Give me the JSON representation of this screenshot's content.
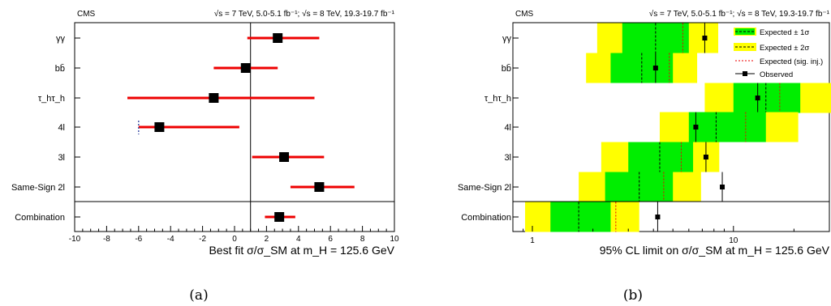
{
  "captions": {
    "a": "(a)",
    "b": "(b)"
  },
  "chart_data": [
    {
      "type": "scatter",
      "panel": "a",
      "experiment": "CMS",
      "energy_text": "√s = 7 TeV, 5.0-5.1 fb⁻¹; √s = 8 TeV, 19.3-19.7 fb⁻¹",
      "xlabel": "Best fit σ/σ_SM at m_H = 125.6 GeV",
      "xlim": [
        -10,
        10
      ],
      "xticks": [
        "-10",
        "-8",
        "-6",
        "-4",
        "-2",
        "0",
        "2",
        "4",
        "6",
        "8",
        "10"
      ],
      "categories": [
        "γγ",
        "bb̄",
        "τ_hτ_h",
        "4l",
        "3l",
        "Same-Sign 2l",
        "Combination"
      ],
      "values": [
        2.7,
        0.7,
        -1.3,
        -4.7,
        3.1,
        5.3,
        2.8
      ],
      "err_low": [
        1.9,
        2.0,
        5.4,
        1.3,
        2.0,
        1.8,
        0.9
      ],
      "err_high": [
        2.6,
        2.0,
        6.3,
        5.0,
        2.5,
        2.2,
        1.0
      ],
      "boundary_value": -6,
      "sm_reference": 1,
      "colors": {
        "marker": "#000000",
        "error_bar": "#ee0000"
      }
    },
    {
      "type": "scatter",
      "panel": "b",
      "experiment": "CMS",
      "energy_text": "√s = 7 TeV, 5.0-5.1 fb⁻¹; √s = 8 TeV, 19.3-19.7 fb⁻¹",
      "xlabel": "95% CL limit on σ/σ_SM at m_H = 125.6 GeV",
      "xscale": "log",
      "xlim": [
        0.8,
        30
      ],
      "xticks": [
        "1",
        "10"
      ],
      "categories": [
        "γγ",
        "bb̄",
        "τ_hτ_h",
        "4l",
        "3l",
        "Same-Sign 2l",
        "Combination"
      ],
      "legend": [
        "Expected ± 1σ",
        "Expected ± 2σ",
        "Expected (sig. inj.)",
        "Observed"
      ],
      "legend_position": "top-right",
      "expected": [
        4.1,
        3.5,
        14.5,
        8.2,
        4.3,
        3.4,
        1.7
      ],
      "expected_1sigma": [
        [
          2.8,
          6.0
        ],
        [
          2.45,
          5.0
        ],
        [
          10.0,
          21.5
        ],
        [
          6.0,
          14.5
        ],
        [
          3.0,
          6.3
        ],
        [
          2.3,
          5.0
        ],
        [
          1.23,
          2.45
        ]
      ],
      "expected_2sigma": [
        [
          2.1,
          8.4
        ],
        [
          1.85,
          6.6
        ],
        [
          7.2,
          31.0
        ],
        [
          4.3,
          21.0
        ],
        [
          2.2,
          8.5
        ],
        [
          1.7,
          6.9
        ],
        [
          0.92,
          3.4
        ]
      ],
      "expected_sig_inj": [
        5.6,
        4.8,
        17.0,
        11.5,
        5.5,
        4.5,
        2.6
      ],
      "observed": [
        7.2,
        4.1,
        13.2,
        6.5,
        7.3,
        8.8,
        4.2
      ],
      "colors": {
        "band_1sigma": "#00ee00",
        "band_2sigma": "#ffff00",
        "sig_inj": "#ee0000",
        "observed": "#000000"
      }
    }
  ]
}
